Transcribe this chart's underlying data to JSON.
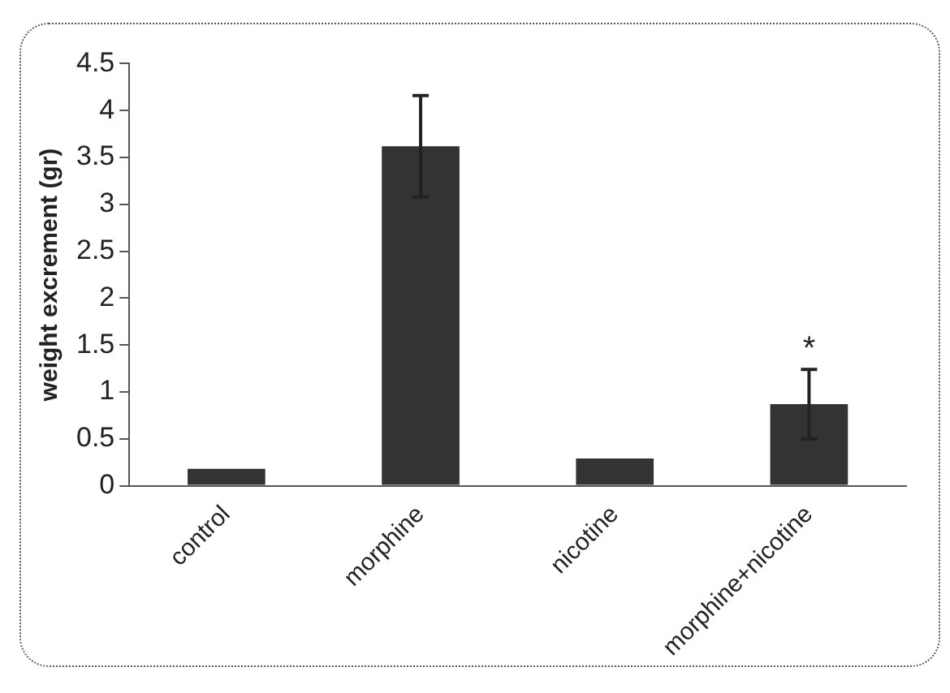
{
  "chart_data": {
    "type": "bar",
    "ylabel": "weight excrement (gr)",
    "categories": [
      "control",
      "morphine",
      "nicotine",
      "morphine+nicotine"
    ],
    "values": [
      0.18,
      3.62,
      0.29,
      0.87
    ],
    "errors": [
      null,
      0.54,
      null,
      0.37
    ],
    "color": "#333333",
    "ylim": [
      0,
      4.5
    ],
    "yticks": [
      0,
      0.5,
      1,
      1.5,
      2,
      2.5,
      3,
      3.5,
      4,
      4.5
    ],
    "grid": false,
    "legend": false,
    "annotations": [
      {
        "text": "*",
        "x": "morphine+nicotine",
        "y": 1.24
      }
    ]
  }
}
